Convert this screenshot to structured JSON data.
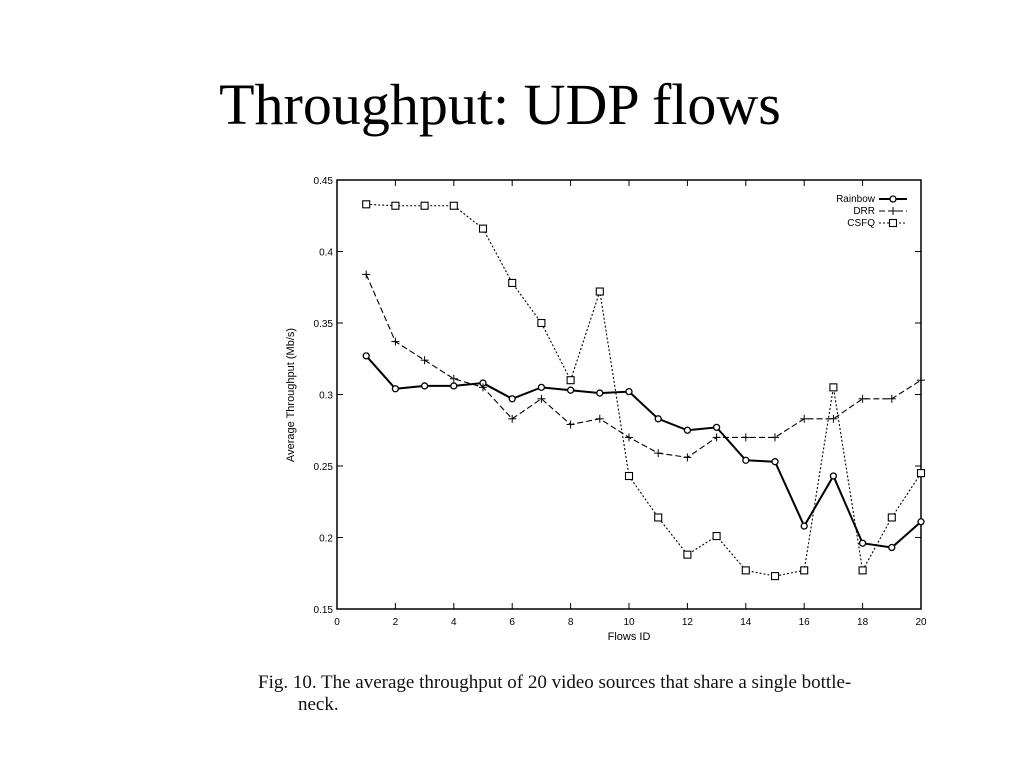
{
  "slide": {
    "title": "Throughput: UDP flows"
  },
  "figure": {
    "caption_line1": "Fig. 10.  The average throughput of 20 video sources that share a single bottle-",
    "caption_line2": "neck."
  },
  "chart_data": {
    "type": "line",
    "title": "",
    "xlabel": "Flows ID",
    "ylabel": "Average Throughput (Mb/s)",
    "xlim": [
      0,
      20
    ],
    "ylim": [
      0.15,
      0.45
    ],
    "x_ticks": [
      0,
      2,
      4,
      6,
      8,
      10,
      12,
      14,
      16,
      18,
      20
    ],
    "y_ticks": [
      0.15,
      0.2,
      0.25,
      0.3,
      0.35,
      0.4,
      0.45
    ],
    "y_tick_labels": [
      "0.15",
      "0.2",
      "0.25",
      "0.3",
      "0.35",
      "0.4",
      "0.45"
    ],
    "grid": false,
    "legend_position": "top-right",
    "x": [
      1,
      2,
      3,
      4,
      5,
      6,
      7,
      8,
      9,
      10,
      11,
      12,
      13,
      14,
      15,
      16,
      17,
      18,
      19,
      20
    ],
    "series": [
      {
        "name": "Rainbow",
        "marker": "circle",
        "line": "solid",
        "values": [
          0.327,
          0.304,
          0.306,
          0.306,
          0.308,
          0.297,
          0.305,
          0.303,
          0.301,
          0.302,
          0.283,
          0.275,
          0.277,
          0.254,
          0.253,
          0.208,
          0.243,
          0.196,
          0.193,
          0.211
        ]
      },
      {
        "name": "DRR",
        "marker": "plus",
        "line": "dashed",
        "values": [
          0.384,
          0.337,
          0.324,
          0.311,
          0.305,
          0.283,
          0.297,
          0.279,
          0.283,
          0.27,
          0.259,
          0.256,
          0.27,
          0.27,
          0.27,
          0.283,
          0.283,
          0.297,
          0.297,
          0.31
        ]
      },
      {
        "name": "CSFQ",
        "marker": "square",
        "line": "dotted",
        "values": [
          0.433,
          0.432,
          0.432,
          0.432,
          0.416,
          0.378,
          0.35,
          0.31,
          0.372,
          0.243,
          0.214,
          0.188,
          0.201,
          0.177,
          0.173,
          0.177,
          0.305,
          0.177,
          0.214,
          0.245
        ]
      }
    ]
  }
}
